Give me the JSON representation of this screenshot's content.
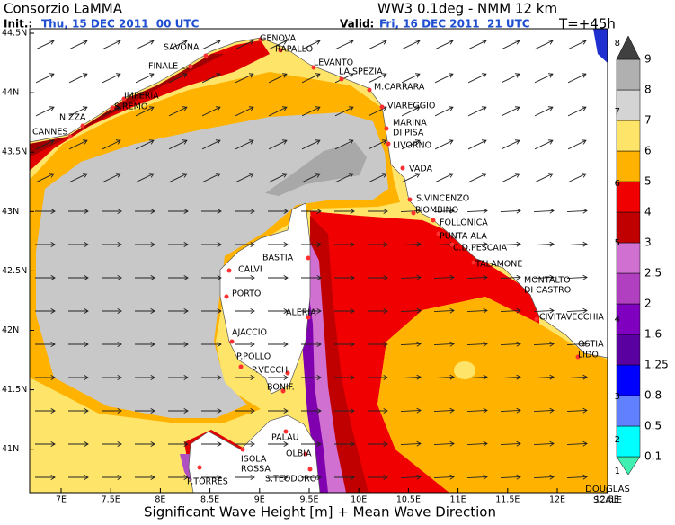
{
  "header": {
    "left_title": "Consorzio LaMMA",
    "right_title": "WW3 0.1deg - NMM 12 km",
    "init_label": "Init.:",
    "init_date": "Thu, 15 DEC 2011  00 UTC",
    "valid_label": "Valid:",
    "valid_date": "Fri, 16 DEC 2011  21 UTC",
    "lead_time": "T=+45h"
  },
  "lat_labels": [
    "44.5N",
    "44N",
    "43.5N",
    "43N",
    "42.5N",
    "42N",
    "41.5N",
    "41N"
  ],
  "lon_labels": [
    "7E",
    "7.5E",
    "8E",
    "8.5E",
    "9E",
    "9.5E",
    "10E",
    "10.5E",
    "11E",
    "11.5E",
    "12E",
    "12.5E"
  ],
  "colorbar": {
    "levels": [
      "0.1",
      "0.5",
      "0.8",
      "1.25",
      "1.6",
      "2",
      "2.5",
      "3",
      "4",
      "5",
      "6",
      "7",
      "8",
      "9"
    ],
    "douglas": [
      "1",
      "2",
      "3",
      "4",
      "5",
      "6",
      "7",
      "8"
    ],
    "douglas_label": [
      "DOUGLAS",
      "SCALE"
    ]
  },
  "places": [
    "GENOVA",
    "RAPALLO",
    "SAVONA",
    "FINALE L.",
    "LEVANTO",
    "LA SPEZIA",
    "IMPERIA",
    "S.REMO",
    "M.CARRARA",
    "VIAREGGIO",
    "NIZZA",
    "CANNES",
    [
      "MARINA",
      "DI PISA"
    ],
    "LIVORNO",
    "VADA",
    "S.VINCENZO",
    "PIOMBINO",
    "FOLLONICA",
    "PUNTA ALA",
    "C.D.PESCAIA",
    "BASTIA",
    "CALVI",
    "TALAMONE",
    [
      "MONTALTO",
      "DI CASTRO"
    ],
    "PORTO",
    "ALERIA",
    "CIVITAVECCHIA",
    "AJACCIO",
    [
      "OSTIA",
      "LIDO"
    ],
    "P.POLLO",
    "P.VECCH",
    "BONIF.",
    "PALAU",
    "OLBIA",
    [
      "ISOLA",
      "ROSSA"
    ],
    "P.TORRES",
    "S.TEODORO"
  ],
  "caption": "Significant Wave Height [m] + Mean Wave Direction"
}
